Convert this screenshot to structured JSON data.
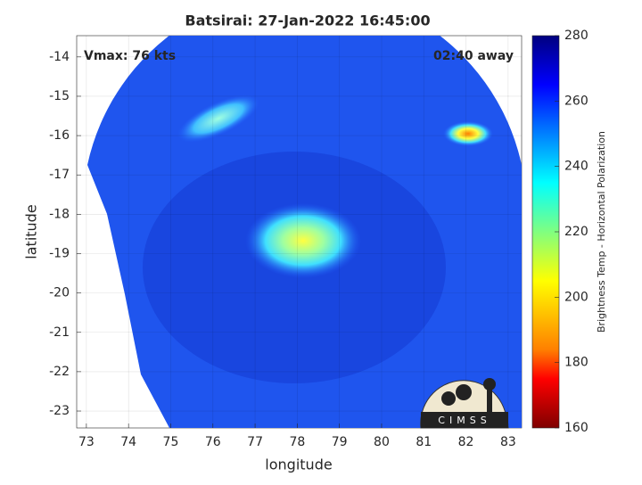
{
  "chart_data": {
    "type": "map",
    "title": "Batsirai: 27-Jan-2022 16:45:00",
    "annotations": [
      "Vmax: 76 kts",
      "02:40 away"
    ],
    "xlabel": "longitude",
    "ylabel": "latitude",
    "xlim": [
      72.77,
      83.32
    ],
    "ylim": [
      -23.43,
      -13.46
    ],
    "xticks": [
      73,
      74,
      75,
      76,
      77,
      78,
      79,
      80,
      81,
      82,
      83
    ],
    "yticks": [
      -14,
      -15,
      -16,
      -17,
      -18,
      -19,
      -20,
      -21,
      -22,
      -23
    ],
    "grid": true,
    "colorbar": {
      "label": "Brightness Temp - Horizontal Polarization",
      "lim": [
        160,
        280
      ],
      "ticks": [
        160,
        180,
        200,
        220,
        240,
        260,
        280
      ]
    },
    "logo": "CIMSS"
  }
}
